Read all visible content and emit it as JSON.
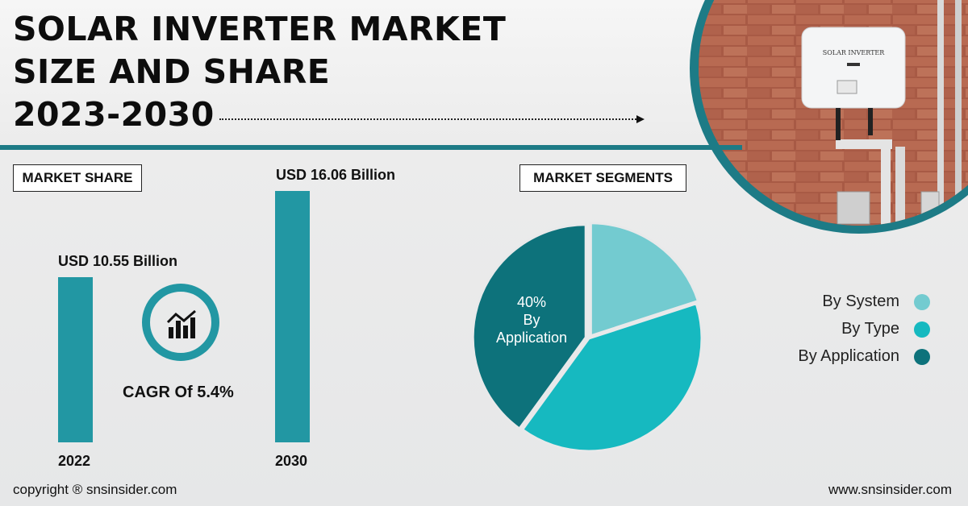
{
  "header": {
    "title_line1": "SOLAR INVERTER MARKET",
    "title_line2": "SIZE AND SHARE",
    "title_line3": "2023-2030"
  },
  "photo": {
    "inverter_label": "SOLAR INVERTER"
  },
  "market_share": {
    "heading": "MARKET SHARE",
    "cagr_label": "CAGR Of 5.4%"
  },
  "market_segments": {
    "heading": "MARKET SEGMENTS"
  },
  "chart_data": [
    {
      "type": "bar",
      "categories": [
        "2022",
        "2030"
      ],
      "values": [
        10.55,
        16.06
      ],
      "data_labels": [
        "USD 10.55 Billion",
        "USD 16.06 Billion"
      ],
      "title": "",
      "xlabel": "",
      "ylabel": "",
      "ylim": [
        0,
        16.06
      ],
      "grid": false
    },
    {
      "type": "pie",
      "categories": [
        "By System",
        "By Type",
        "By Application"
      ],
      "values": [
        20,
        40,
        40
      ],
      "colors": [
        "#73cbd0",
        "#16b9c0",
        "#0d727b"
      ],
      "annotation": {
        "percent": "40%",
        "line1": "By",
        "line2": "Application"
      },
      "legend_position": "right"
    }
  ],
  "footer": {
    "copyright": "copyright ® snsinsider.com",
    "website": "www.snsinsider.com"
  },
  "colors": {
    "accent": "#1d7b86",
    "bar": "#2297a3"
  }
}
